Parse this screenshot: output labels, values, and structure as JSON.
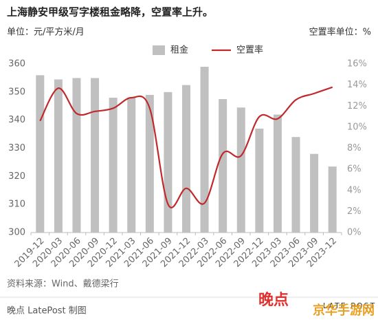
{
  "chart_data": {
    "type": "bar-line",
    "title": "上海静安甲级写字楼租金略降，空置率上升。",
    "y_label": "单位：元/平方米/月",
    "y2_label": "空置率单位：%",
    "source": "资料来源：Wind、戴德梁行",
    "credit": "晚点 LatePost 制图",
    "logo": "晚点",
    "logo_sub": "LATE POST",
    "watermark": "京华手游网",
    "categories": [
      "2019-12",
      "2020-03",
      "2020-06",
      "2020-09",
      "2020-12",
      "2021-03",
      "2021-06",
      "2021-09",
      "2021-12",
      "2022-03",
      "2022-06",
      "2022-09",
      "2022-12",
      "2023-03",
      "2023-06",
      "2023-09",
      "2023-12"
    ],
    "series": [
      {
        "name": "租金",
        "color": "#c0c0c0",
        "type": "bar",
        "axis": "y",
        "values": [
          356,
          354.5,
          355,
          355,
          348,
          348,
          349,
          350,
          352.5,
          359,
          347.5,
          344.5,
          337,
          342,
          334,
          328,
          323.5
        ]
      },
      {
        "name": "空置率",
        "color": "#c0282b",
        "type": "line",
        "axis": "y2",
        "values": [
          10.6,
          13.7,
          11.3,
          11.5,
          11.8,
          12.8,
          11.8,
          2.7,
          4.2,
          2.8,
          7.5,
          7.3,
          11.0,
          10.8,
          12.6,
          13.2,
          13.8
        ]
      }
    ],
    "ylim": [
      300,
      360
    ],
    "yticks": [
      300,
      310,
      320,
      330,
      340,
      350,
      360
    ],
    "y2lim": [
      0,
      16
    ],
    "y2ticks": [
      {
        "value": 0,
        "label": "0%"
      },
      {
        "value": 2,
        "label": "2%"
      },
      {
        "value": 4,
        "label": "4%"
      },
      {
        "value": 6,
        "label": "6%"
      },
      {
        "value": 8,
        "label": "8%"
      },
      {
        "value": 10,
        "label": "10%"
      },
      {
        "value": 12,
        "label": "12%"
      },
      {
        "value": 14,
        "label": "14%"
      },
      {
        "value": 16,
        "label": "16%"
      }
    ],
    "grid": false,
    "legend": "top"
  }
}
